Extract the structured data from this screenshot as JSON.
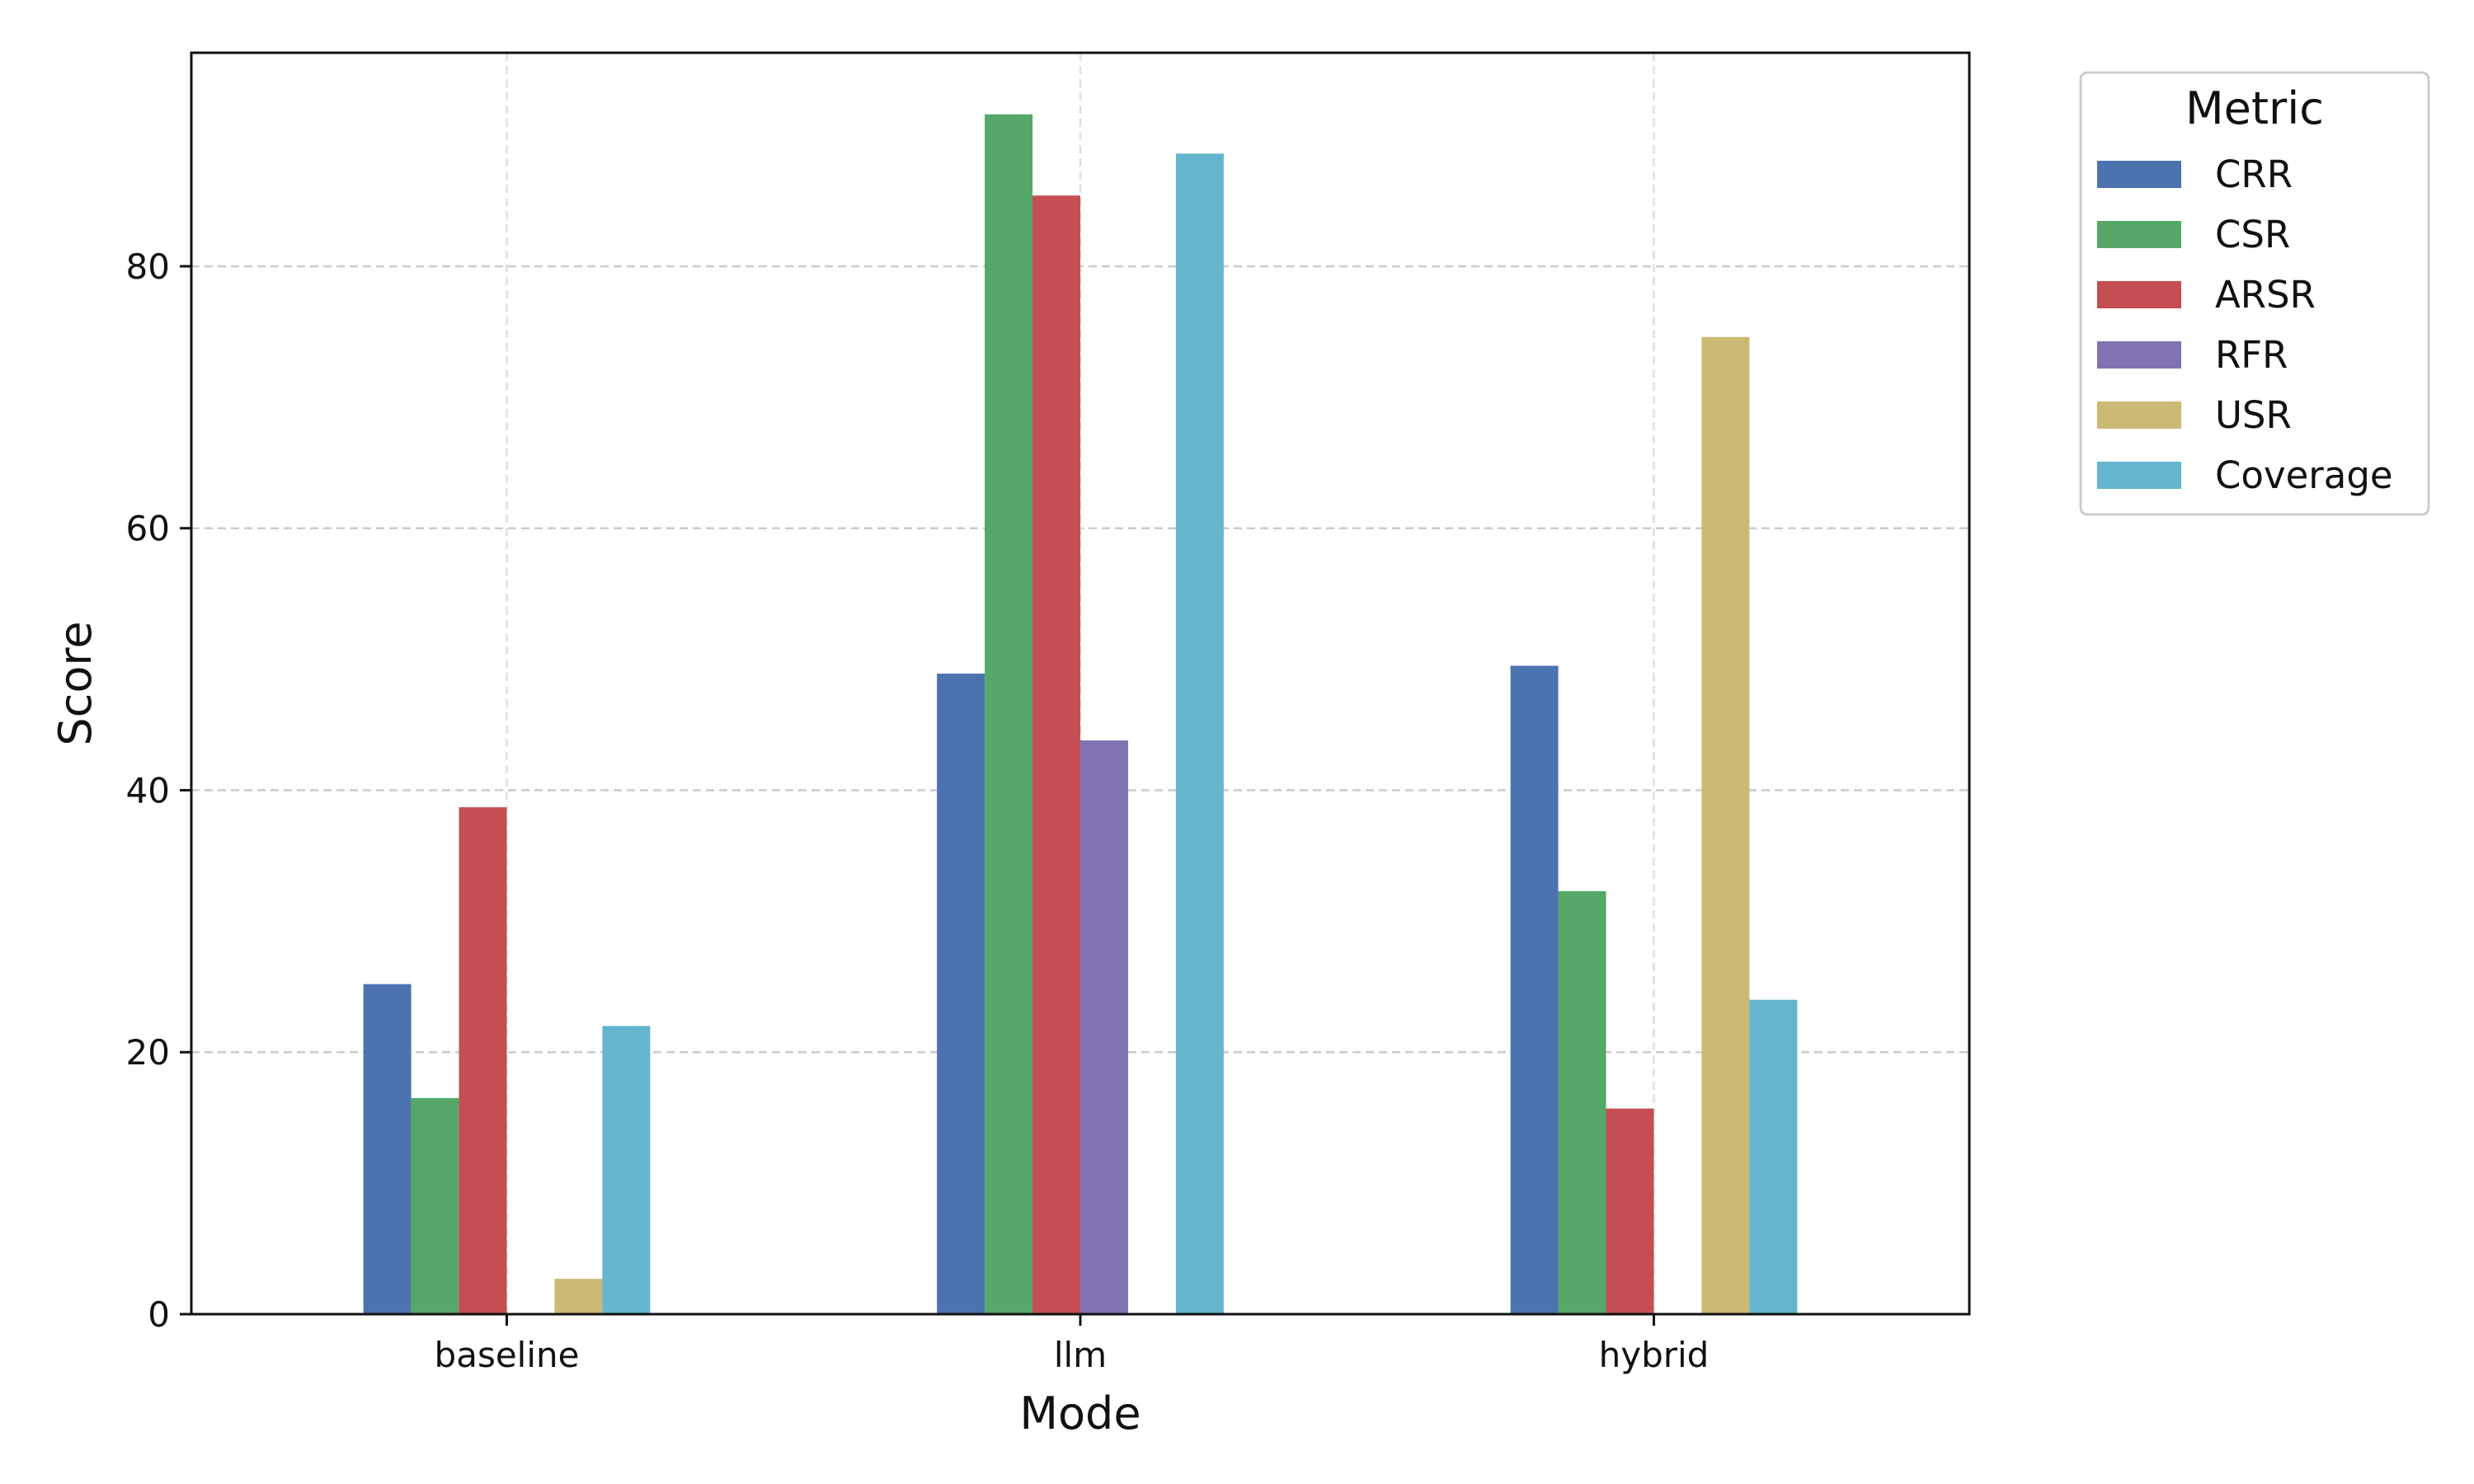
{
  "chart_data": {
    "type": "bar",
    "title": "",
    "xlabel": "Mode",
    "ylabel": "Score",
    "categories": [
      "baseline",
      "llm",
      "hybrid"
    ],
    "ylim": [
      0,
      96.3
    ],
    "yticks": [
      0,
      20,
      40,
      60,
      80
    ],
    "grid": true,
    "legend": {
      "title": "Metric",
      "placement": "outside-top-right"
    },
    "series": [
      {
        "name": "CRR",
        "color": "#4c72b0",
        "values": [
          25.2,
          48.9,
          49.5
        ]
      },
      {
        "name": "CSR",
        "color": "#55a868",
        "values": [
          16.5,
          91.6,
          32.3
        ]
      },
      {
        "name": "ARSR",
        "color": "#c44e52",
        "values": [
          38.7,
          85.4,
          15.7
        ]
      },
      {
        "name": "RFR",
        "color": "#8172b2",
        "values": [
          0,
          43.8,
          0
        ]
      },
      {
        "name": "USR",
        "color": "#ccb974",
        "values": [
          2.7,
          0,
          74.6
        ]
      },
      {
        "name": "Coverage",
        "color": "#64b5cd",
        "values": [
          22.0,
          88.6,
          24.0
        ]
      }
    ]
  }
}
